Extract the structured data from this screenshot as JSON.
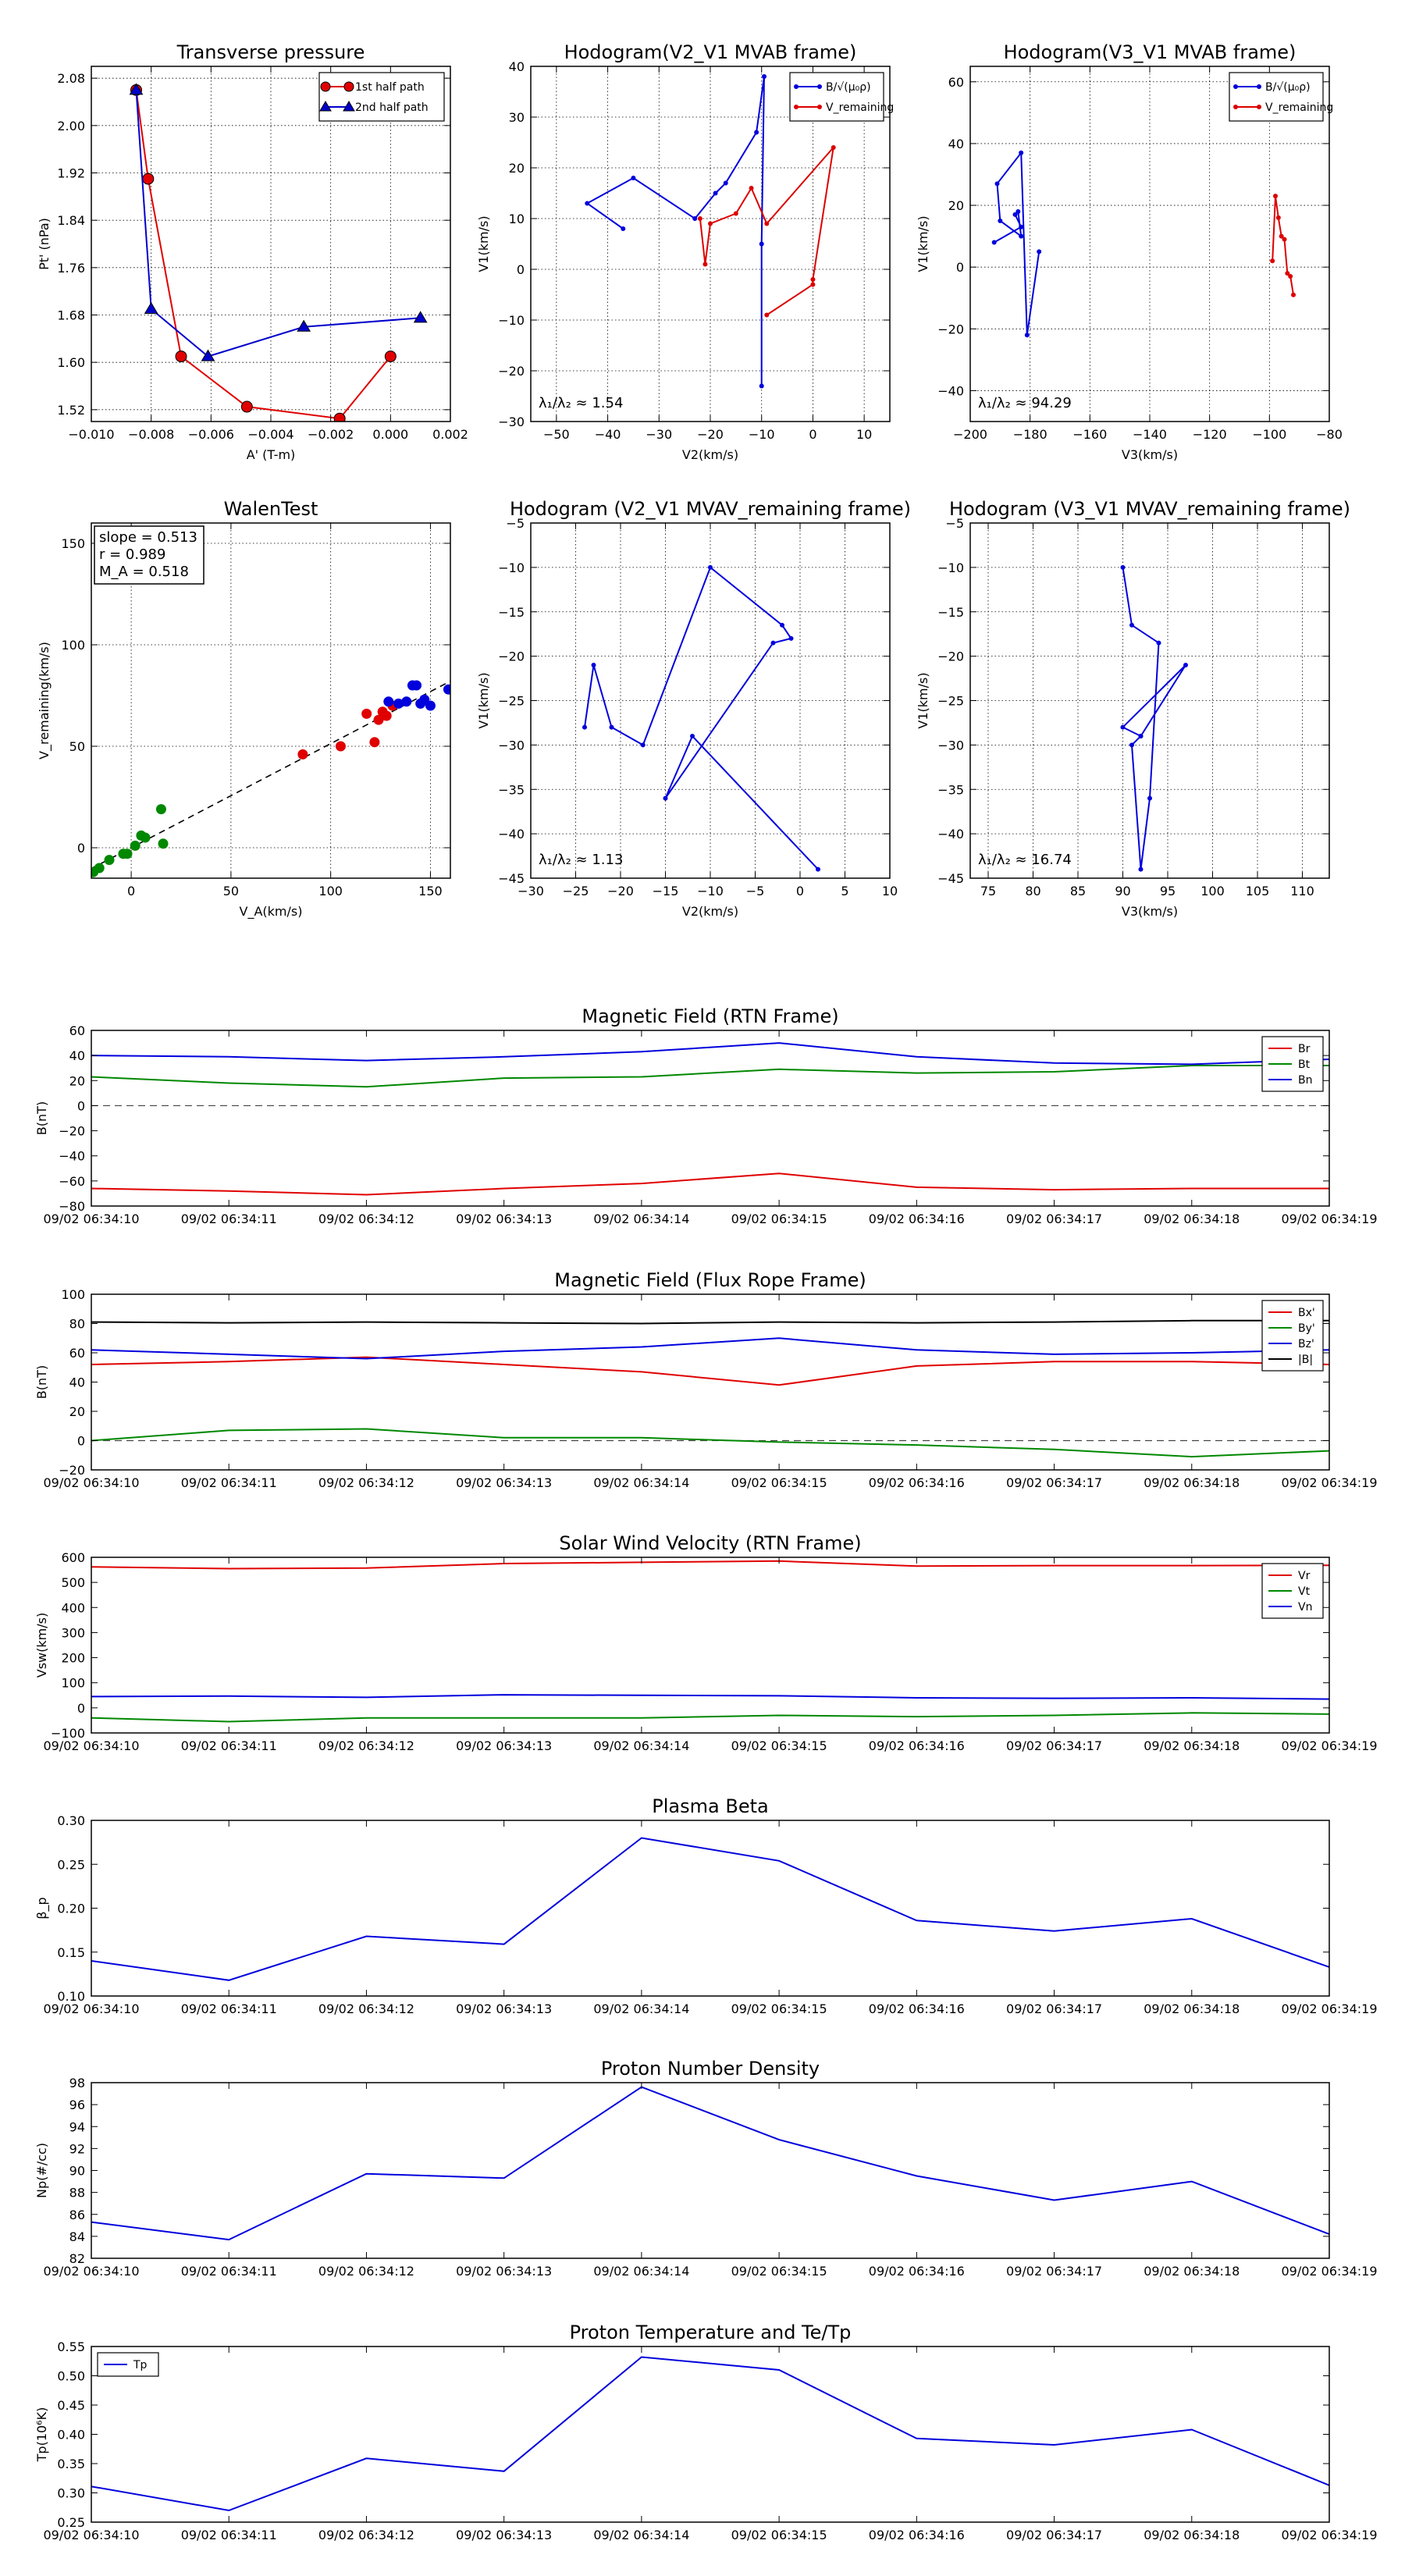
{
  "chart_data": [
    {
      "id": "p1",
      "type": "line",
      "title": "Transverse pressure",
      "xlabel": "A' (T-m)",
      "ylabel": "Pt' (nPa)",
      "xlim": [
        -0.01,
        0.002
      ],
      "ylim": [
        1.5,
        2.1
      ],
      "xticks": [
        "−0.010",
        "−0.008",
        "−0.006",
        "−0.004",
        "−0.002",
        "0.000",
        "0.002"
      ],
      "yticks": [
        "1.52",
        "1.60",
        "1.68",
        "1.76",
        "1.84",
        "1.92",
        "2.00",
        "2.08"
      ],
      "legend": "top-right",
      "series": [
        {
          "name": "1st half path",
          "color": "#e00000",
          "marker": "circle",
          "x": [
            -0.0085,
            -0.0081,
            -0.007,
            -0.0048,
            -0.0017,
            0.0
          ],
          "y": [
            2.06,
            1.91,
            1.61,
            1.525,
            1.505,
            1.61
          ]
        },
        {
          "name": "2nd half path",
          "color": "#0000cc",
          "marker": "triangle",
          "x": [
            -0.0085,
            -0.008,
            -0.0061,
            -0.0029,
            0.001
          ],
          "y": [
            2.06,
            1.69,
            1.61,
            1.66,
            1.675
          ]
        }
      ]
    },
    {
      "id": "p2",
      "type": "line",
      "title": "Hodogram(V2_V1 MVAB frame)",
      "xlabel": "V2(km/s)",
      "ylabel": "V1(km/s)",
      "xlim": [
        -55,
        15
      ],
      "ylim": [
        -30,
        40
      ],
      "xticks": [
        "−50",
        "−40",
        "−30",
        "−20",
        "−10",
        "0",
        "10"
      ],
      "yticks": [
        "−30",
        "−20",
        "−10",
        "0",
        "10",
        "20",
        "30",
        "40"
      ],
      "annotation": "λ₁/λ₂ ≈ 1.54",
      "legend": "top-right",
      "series": [
        {
          "name": "B/√(μ₀ρ)",
          "color": "#0000dd",
          "x": [
            -37,
            -44,
            -35,
            -23,
            -19,
            -17,
            -11,
            -9.5,
            -10,
            -10
          ],
          "y": [
            8,
            13,
            18,
            10,
            15,
            17,
            27,
            38,
            5,
            -23
          ]
        },
        {
          "name": "V_remaining",
          "color": "#dd0000",
          "x": [
            -22,
            -21,
            -20,
            -15,
            -12,
            -9,
            4,
            0,
            0,
            -9
          ],
          "y": [
            10,
            1,
            9,
            11,
            16,
            9,
            24,
            -2,
            -3,
            -9
          ]
        }
      ]
    },
    {
      "id": "p3",
      "type": "line",
      "title": "Hodogram(V3_V1 MVAB frame)",
      "xlabel": "V3(km/s)",
      "ylabel": "V1(km/s)",
      "xlim": [
        -200,
        -80
      ],
      "ylim": [
        -50,
        65
      ],
      "xticks": [
        "−200",
        "−180",
        "−160",
        "−140",
        "−120",
        "−100",
        "−80"
      ],
      "yticks": [
        "−40",
        "−20",
        "0",
        "20",
        "40",
        "60"
      ],
      "annotation": "λ₁/λ₂ ≈ 94.29",
      "legend": "top-right",
      "series": [
        {
          "name": "B/√(μ₀ρ)",
          "color": "#0000dd",
          "x": [
            -192,
            -183,
            -185,
            -184,
            -183,
            -190,
            -191,
            -183,
            -181,
            -177
          ],
          "y": [
            8,
            13,
            17,
            18,
            10,
            15,
            27,
            37,
            -22,
            5
          ]
        },
        {
          "name": "V_remaining",
          "color": "#dd0000",
          "x": [
            -99,
            -98,
            -97,
            -96,
            -95,
            -94,
            -93,
            -92
          ],
          "y": [
            2,
            23,
            16,
            10,
            9,
            -2,
            -3,
            -9
          ]
        }
      ]
    },
    {
      "id": "p4",
      "type": "scatter",
      "title": "WalenTest",
      "xlabel": "V_A(km/s)",
      "ylabel": "V_remaining(km/s)",
      "xlim": [
        -20,
        160
      ],
      "ylim": [
        -15,
        160
      ],
      "xticks": [
        "0",
        "50",
        "100",
        "150"
      ],
      "yticks": [
        "0",
        "50",
        "100",
        "150"
      ],
      "stats": [
        "slope = 0.513",
        "r = 0.989",
        "M_A = 0.518"
      ],
      "fit": {
        "slope": 0.513,
        "intercept": 0
      },
      "series": [
        {
          "name": "green",
          "color": "#008800",
          "x": [
            -19,
            -16,
            -11,
            -4,
            -2,
            2,
            5,
            7,
            15,
            16
          ],
          "y": [
            -12,
            -10,
            -6,
            -3,
            -3,
            1,
            6,
            5,
            19,
            2
          ]
        },
        {
          "name": "red",
          "color": "#e00000",
          "x": [
            86,
            105,
            118,
            122,
            124,
            126,
            128,
            131
          ],
          "y": [
            46,
            50,
            66,
            52,
            63,
            67,
            65,
            70
          ]
        },
        {
          "name": "blue",
          "color": "#0000dd",
          "x": [
            129,
            134,
            138,
            141,
            143,
            145,
            147,
            150,
            159
          ],
          "y": [
            72,
            71,
            72,
            80,
            80,
            71,
            73,
            70,
            78
          ]
        }
      ]
    },
    {
      "id": "p5",
      "type": "line",
      "title": "Hodogram (V2_V1 MVAV_remaining frame)",
      "xlabel": "V2(km/s)",
      "ylabel": "V1(km/s)",
      "xlim": [
        -30,
        10
      ],
      "ylim": [
        -45,
        -5
      ],
      "xticks": [
        "−30",
        "−25",
        "−20",
        "−15",
        "−10",
        "−5",
        "0",
        "5",
        "10"
      ],
      "yticks": [
        "−45",
        "−40",
        "−35",
        "−30",
        "−25",
        "−20",
        "−15",
        "−10",
        "−5"
      ],
      "annotation": "λ₁/λ₂ ≈ 1.13",
      "series": [
        {
          "name": "hodogram",
          "color": "#0000dd",
          "x": [
            -24,
            -23,
            -21,
            -17.5,
            -10,
            -2,
            -1,
            -3,
            -15,
            -12,
            2
          ],
          "y": [
            -28,
            -21,
            -28,
            -30,
            -10,
            -16.5,
            -18,
            -18.5,
            -36,
            -29,
            -44
          ]
        }
      ]
    },
    {
      "id": "p6",
      "type": "line",
      "title": "Hodogram (V3_V1 MVAV_remaining frame)",
      "xlabel": "V3(km/s)",
      "ylabel": "V1(km/s)",
      "xlim": [
        73,
        113
      ],
      "ylim": [
        -45,
        -5
      ],
      "xticks": [
        "75",
        "80",
        "85",
        "90",
        "95",
        "100",
        "105",
        "110"
      ],
      "yticks": [
        "−45",
        "−40",
        "−35",
        "−30",
        "−25",
        "−20",
        "−15",
        "−10",
        "−5"
      ],
      "annotation": "λ₁/λ₂ ≈ 16.74",
      "series": [
        {
          "name": "hodogram",
          "color": "#0000dd",
          "x": [
            90,
            91,
            94,
            93,
            92,
            91,
            92,
            90,
            97,
            92,
            92,
            92
          ],
          "y": [
            -10,
            -16.5,
            -18.5,
            -36,
            -44,
            -30,
            -29,
            -28,
            -21,
            -29,
            -29,
            -29
          ]
        }
      ]
    },
    {
      "id": "p7",
      "type": "line",
      "title": "Magnetic Field (RTN Frame)",
      "xlabel": "",
      "ylabel": "B(nT)",
      "ylim": [
        -80,
        60
      ],
      "yticks": [
        "−80",
        "−60",
        "−40",
        "−20",
        "0",
        "20",
        "40",
        "60"
      ],
      "xticklabels": [
        "09/02 06:34:10",
        "09/02 06:34:11",
        "09/02 06:34:12",
        "09/02 06:34:13",
        "09/02 06:34:14",
        "09/02 06:34:15",
        "09/02 06:34:16",
        "09/02 06:34:17",
        "09/02 06:34:18",
        "09/02 06:34:19"
      ],
      "zero_line": true,
      "legend": "top-right",
      "series": [
        {
          "name": "Br",
          "color": "#e00000",
          "values": [
            -66,
            -68,
            -71,
            -66,
            -62,
            -54,
            -65,
            -67,
            -66,
            -66
          ]
        },
        {
          "name": "Bt",
          "color": "#008800",
          "values": [
            23,
            18,
            15,
            22,
            23,
            29,
            26,
            27,
            32,
            32
          ]
        },
        {
          "name": "Bn",
          "color": "#0000dd",
          "values": [
            40,
            39,
            36,
            39,
            43,
            50,
            39,
            34,
            33,
            37
          ]
        }
      ]
    },
    {
      "id": "p8",
      "type": "line",
      "title": "Magnetic Field (Flux Rope Frame)",
      "xlabel": "",
      "ylabel": "B(nT)",
      "ylim": [
        -20,
        100
      ],
      "yticks": [
        "−20",
        "0",
        "20",
        "40",
        "60",
        "80",
        "100"
      ],
      "xticklabels": [
        "09/02 06:34:10",
        "09/02 06:34:11",
        "09/02 06:34:12",
        "09/02 06:34:13",
        "09/02 06:34:14",
        "09/02 06:34:15",
        "09/02 06:34:16",
        "09/02 06:34:17",
        "09/02 06:34:18",
        "09/02 06:34:19"
      ],
      "zero_line": true,
      "legend": "top-right",
      "series": [
        {
          "name": "Bx'",
          "color": "#e00000",
          "values": [
            52,
            54,
            57,
            52,
            47,
            38,
            51,
            54,
            54,
            52
          ]
        },
        {
          "name": "By'",
          "color": "#008800",
          "values": [
            0,
            7,
            8,
            2,
            2,
            -1,
            -3,
            -6,
            -11,
            -7
          ]
        },
        {
          "name": "Bz'",
          "color": "#0000dd",
          "values": [
            62,
            59,
            56,
            61,
            64,
            70,
            62,
            59,
            60,
            62
          ]
        },
        {
          "name": "|B|",
          "color": "#000000",
          "values": [
            81,
            80.5,
            81,
            80.5,
            80,
            81,
            80.5,
            81,
            82,
            82
          ]
        }
      ]
    },
    {
      "id": "p9",
      "type": "line",
      "title": "Solar Wind Velocity (RTN Frame)",
      "xlabel": "",
      "ylabel": "Vsw(km/s)",
      "ylim": [
        -100,
        600
      ],
      "yticks": [
        "−100",
        "0",
        "100",
        "200",
        "300",
        "400",
        "500",
        "600"
      ],
      "xticklabels": [
        "09/02 06:34:10",
        "09/02 06:34:11",
        "09/02 06:34:12",
        "09/02 06:34:13",
        "09/02 06:34:14",
        "09/02 06:34:15",
        "09/02 06:34:16",
        "09/02 06:34:17",
        "09/02 06:34:18",
        "09/02 06:34:19"
      ],
      "legend": "top-right",
      "series": [
        {
          "name": "Vr",
          "color": "#e00000",
          "values": [
            562,
            555,
            557,
            575,
            580,
            585,
            565,
            567,
            567,
            568
          ]
        },
        {
          "name": "Vt",
          "color": "#008800",
          "values": [
            -40,
            -55,
            -40,
            -40,
            -40,
            -30,
            -35,
            -30,
            -20,
            -25
          ]
        },
        {
          "name": "Vn",
          "color": "#0000dd",
          "values": [
            45,
            47,
            42,
            52,
            50,
            48,
            40,
            38,
            40,
            35
          ]
        }
      ]
    },
    {
      "id": "p10",
      "type": "line",
      "title": "Plasma Beta",
      "xlabel": "",
      "ylabel": "β_p",
      "ylim": [
        0.1,
        0.3
      ],
      "yticks": [
        "0.10",
        "0.15",
        "0.20",
        "0.25",
        "0.30"
      ],
      "xticklabels": [
        "09/02 06:34:10",
        "09/02 06:34:11",
        "09/02 06:34:12",
        "09/02 06:34:13",
        "09/02 06:34:14",
        "09/02 06:34:15",
        "09/02 06:34:16",
        "09/02 06:34:17",
        "09/02 06:34:18",
        "09/02 06:34:19"
      ],
      "series": [
        {
          "name": "beta",
          "color": "#0000dd",
          "values": [
            0.14,
            0.118,
            0.168,
            0.159,
            0.28,
            0.254,
            0.186,
            0.174,
            0.188,
            0.133
          ]
        }
      ]
    },
    {
      "id": "p11",
      "type": "line",
      "title": "Proton Number Density",
      "xlabel": "",
      "ylabel": "Np(#/cc)",
      "ylim": [
        82,
        98
      ],
      "yticks": [
        "82",
        "84",
        "86",
        "88",
        "90",
        "92",
        "94",
        "96",
        "98"
      ],
      "xticklabels": [
        "09/02 06:34:10",
        "09/02 06:34:11",
        "09/02 06:34:12",
        "09/02 06:34:13",
        "09/02 06:34:14",
        "09/02 06:34:15",
        "09/02 06:34:16",
        "09/02 06:34:17",
        "09/02 06:34:18",
        "09/02 06:34:19"
      ],
      "series": [
        {
          "name": "Np",
          "color": "#0000dd",
          "values": [
            85.3,
            83.7,
            89.7,
            89.3,
            97.6,
            92.8,
            89.5,
            87.3,
            89.0,
            84.2
          ]
        }
      ]
    },
    {
      "id": "p12",
      "type": "line",
      "title": "Proton Temperature and Te/Tp",
      "xlabel": "",
      "ylabel": "Tp(10⁶K)",
      "ylim": [
        0.25,
        0.55
      ],
      "yticks": [
        "0.25",
        "0.30",
        "0.35",
        "0.40",
        "0.45",
        "0.50",
        "0.55"
      ],
      "xticklabels": [
        "09/02 06:34:10",
        "09/02 06:34:11",
        "09/02 06:34:12",
        "09/02 06:34:13",
        "09/02 06:34:14",
        "09/02 06:34:15",
        "09/02 06:34:16",
        "09/02 06:34:17",
        "09/02 06:34:18",
        "09/02 06:34:19"
      ],
      "legend": "top-left",
      "series": [
        {
          "name": "Tp",
          "color": "#0000dd",
          "values": [
            0.311,
            0.27,
            0.359,
            0.337,
            0.532,
            0.51,
            0.393,
            0.382,
            0.408,
            0.313
          ]
        }
      ]
    }
  ]
}
